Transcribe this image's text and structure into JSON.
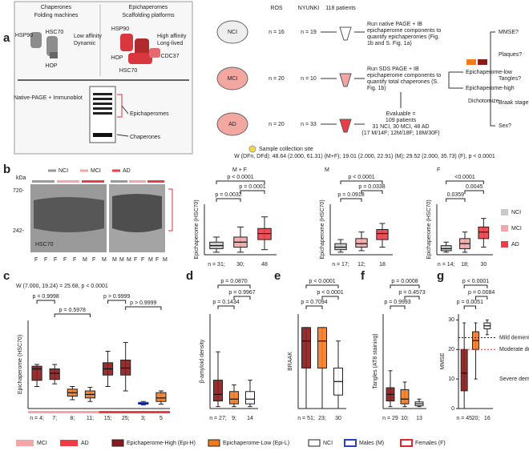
{
  "panel_a": {
    "label": "a",
    "chaperones": {
      "title": "Chaperones",
      "subtitle": "Folding machines",
      "proteins": [
        "HSP90",
        "HSC70",
        "HOP"
      ],
      "traits": [
        "Low affinity",
        "Dynamic"
      ]
    },
    "epichaperomes": {
      "title": "Epichaperomes",
      "subtitle": "Scaffolding platforms",
      "proteins": [
        "HSP90",
        "HOP",
        "HSC70",
        "CDC37"
      ],
      "traits": [
        "High affinity",
        "Long-lived"
      ]
    },
    "method": "Native-PAGE + Immunoblot",
    "bands": [
      "Epichaperomes",
      "Chaperones"
    ],
    "cohorts": [
      "ROS",
      "NYUNKI",
      "118 patients"
    ],
    "groups": [
      {
        "name": "NCI",
        "ros": "n = 16",
        "nyu": "n = 19"
      },
      {
        "name": "MCI",
        "ros": "n = 20",
        "nyu": "n = 10"
      },
      {
        "name": "AD",
        "ros": "n = 20",
        "nyu": "n = 33"
      }
    ],
    "steps": [
      [
        "Run native PAGE + IB",
        "epichaperome components to",
        "quantify epichaperomes (Fig.",
        "1b and S. Fig. 1a)"
      ],
      [
        "Run SDS PAGE + IB",
        "epichaperome components to",
        "quantify total chaperones (S.",
        "Fig. 1b)"
      ]
    ],
    "evaluable": [
      "Evaluable =",
      "109 patients",
      "31 NCI, 30 MCI, 48 AD",
      "(17 M/14F; 12M/18F; 18M/30F)"
    ],
    "outcomes": [
      "Epichaperome-low",
      "Epichaperome-high"
    ],
    "dichotomize": "Dichotomize",
    "questions": [
      "MMSE?",
      "Plaques?",
      "Tangles?",
      "Braak stage?",
      "Sex?"
    ],
    "site": "Sample collection site"
  },
  "panel_b": {
    "label": "b",
    "stat": "W (DFn, DFd): 48.64 (2.000, 61.31) (M+F); 19.01 (2.000, 22.91) (M); 29.52 (2.000, 35.73) (F), p < 0.0001",
    "legend": [
      "NCI",
      "MCI",
      "AD"
    ],
    "blot": {
      "unit": "kDa",
      "markers": [
        "720-",
        "242-"
      ],
      "protein": "HSC70",
      "lanes": [
        [
          "F",
          "F",
          "F",
          "F",
          "F",
          "M",
          "F",
          "M"
        ],
        [
          "M",
          "M",
          "M",
          "F",
          "F",
          "M",
          "F",
          "M"
        ]
      ]
    }
  },
  "panel_labels": [
    "c",
    "d",
    "e",
    "f",
    "g"
  ],
  "c_stat": "W (7.000, 19.24) = 25.68, p < 0.0001",
  "g_annotations": [
    {
      "label": "Mild dementia",
      "value": 24
    },
    {
      "label": "Moderate dementia",
      "value": 20
    },
    {
      "label": "Severe dementia",
      "value": 10
    }
  ],
  "legend": [
    "MCI",
    "AD",
    "Epichaperome-High (Epi-H)",
    "Epichaperome-Low (Epi-L)",
    "NCI",
    "Males (M)",
    "Females (F)"
  ],
  "chart_data": [
    {
      "type": "box",
      "title": "M + F",
      "ylabel": "Epichaperome (HSC70)",
      "categories": [
        "n = 31;",
        "30;",
        "48"
      ],
      "colors": [
        "#c9c9c9",
        "#f4a6a6",
        "#ec3d47"
      ],
      "ylim": [
        0,
        100
      ],
      "boxes": [
        {
          "min": 5,
          "q1": 12,
          "median": 18,
          "q3": 25,
          "max": 35
        },
        {
          "min": 5,
          "q1": 15,
          "median": 25,
          "q3": 35,
          "max": 55
        },
        {
          "min": 10,
          "q1": 30,
          "median": 42,
          "q3": 52,
          "max": 75
        }
      ],
      "p_labels": [
        "p = 0.0032",
        "p = 0.0001",
        "p < 0.0001"
      ]
    },
    {
      "type": "box",
      "title": "M",
      "ylabel": "Epichaperome (HSC70)",
      "categories": [
        "n = 17;",
        "12;",
        "18"
      ],
      "colors": [
        "#c9c9c9",
        "#f4a6a6",
        "#ec3d47"
      ],
      "ylim": [
        0,
        100
      ],
      "boxes": [
        {
          "min": 5,
          "q1": 10,
          "median": 15,
          "q3": 22,
          "max": 30
        },
        {
          "min": 8,
          "q1": 15,
          "median": 22,
          "q3": 32,
          "max": 45
        },
        {
          "min": 15,
          "q1": 30,
          "median": 42,
          "q3": 50,
          "max": 62
        }
      ],
      "p_labels": [
        "p = 0.0918",
        "p = 0.0338",
        "p < 0.0001"
      ]
    },
    {
      "type": "box",
      "title": "F",
      "ylabel": "Epichaperome (HSC70)",
      "categories": [
        "n = 14;",
        "18;",
        "30"
      ],
      "colors": [
        "#c9c9c9",
        "#f4a6a6",
        "#ec3d47"
      ],
      "ylim": [
        0,
        100
      ],
      "boxes": [
        {
          "min": 5,
          "q1": 8,
          "median": 12,
          "q3": 18,
          "max": 25
        },
        {
          "min": 5,
          "q1": 12,
          "median": 22,
          "q3": 32,
          "max": 45
        },
        {
          "min": 15,
          "q1": 32,
          "median": 45,
          "q3": 55,
          "max": 72
        }
      ],
      "p_labels": [
        "0.0359",
        "0.0045",
        "<0.0001"
      ]
    },
    {
      "type": "box",
      "ylabel": "Epichaperome (HSC70)",
      "categories": [
        "n = 4;",
        "7;",
        "8;",
        "11;",
        "15;",
        "25;",
        "3;",
        "5"
      ],
      "colors": [
        "#8b1a1a",
        "#8b1a1a",
        "#f47a20",
        "#f47a20",
        "#8b1a1a",
        "#8b1a1a",
        "#ffffff",
        "#f47a20"
      ],
      "ylim": [
        0,
        100
      ],
      "boxes": [
        {
          "min": 25,
          "q1": 32,
          "median": 45,
          "q3": 48,
          "max": 50
        },
        {
          "min": 28,
          "q1": 33,
          "median": 40,
          "q3": 45,
          "max": 50
        },
        {
          "min": 10,
          "q1": 14,
          "median": 18,
          "q3": 22,
          "max": 25
        },
        {
          "min": 8,
          "q1": 12,
          "median": 16,
          "q3": 20,
          "max": 24
        },
        {
          "min": 25,
          "q1": 38,
          "median": 45,
          "q3": 52,
          "max": 65
        },
        {
          "min": 20,
          "q1": 38,
          "median": 46,
          "q3": 55,
          "max": 75
        },
        {
          "min": 4,
          "q1": 5,
          "median": 6,
          "q3": 7,
          "max": 8
        },
        {
          "min": 5,
          "q1": 8,
          "median": 12,
          "q3": 18,
          "max": 20
        }
      ],
      "p_labels": [
        "p = 0.9998",
        "p = 0.5978",
        "p > 0.9999",
        "p > 0.9999"
      ]
    },
    {
      "type": "box",
      "ylabel": "β-amyloid density",
      "categories": [
        "n = 27;",
        "9;",
        "14"
      ],
      "colors": [
        "#8b1a1a",
        "#f47a20",
        "#ffffff"
      ],
      "ylim": [
        0,
        100
      ],
      "boxes": [
        {
          "min": 2,
          "q1": 8,
          "median": 15,
          "q3": 30,
          "max": 60
        },
        {
          "min": 2,
          "q1": 5,
          "median": 10,
          "q3": 18,
          "max": 25
        },
        {
          "min": 2,
          "q1": 5,
          "median": 10,
          "q3": 18,
          "max": 30
        }
      ],
      "p_labels": [
        "p = 0.1434",
        "p = 0.9967",
        "p = 0.0870"
      ]
    },
    {
      "type": "box",
      "ylabel": "BRAAK",
      "categories": [
        "n = 51;",
        "23;",
        "30"
      ],
      "colors": [
        "#8b1a1a",
        "#f47a20",
        "#ffffff"
      ],
      "ylim": [
        0,
        7
      ],
      "boxes": [
        {
          "min": 0,
          "q1": 3,
          "median": 5,
          "q3": 6,
          "max": 6
        },
        {
          "min": 0,
          "q1": 3,
          "median": 5,
          "q3": 6,
          "max": 6
        },
        {
          "min": 0,
          "q1": 1,
          "median": 2,
          "q3": 3,
          "max": 5
        }
      ],
      "p_labels": [
        "p = 0.7094",
        "p < 0.0001",
        "p < 0.0001"
      ]
    },
    {
      "type": "box",
      "ylabel": "Tangles (AT8 staining)",
      "categories": [
        "n = 29",
        "10;",
        "13"
      ],
      "colors": [
        "#8b1a1a",
        "#f47a20",
        "#ffffff"
      ],
      "ylim": [
        0,
        100
      ],
      "boxes": [
        {
          "min": 2,
          "q1": 8,
          "median": 15,
          "q3": 22,
          "max": 40
        },
        {
          "min": 2,
          "q1": 5,
          "median": 10,
          "q3": 20,
          "max": 28
        },
        {
          "min": 2,
          "q1": 3,
          "median": 5,
          "q3": 7,
          "max": 10
        }
      ],
      "p_labels": [
        "p = 0.9993",
        "p = 0.4573",
        "p = 0.0008"
      ]
    },
    {
      "type": "box",
      "ylabel": "MMSE",
      "categories": [
        "n = 45",
        "20;",
        "16"
      ],
      "colors": [
        "#8b1a1a",
        "#f47a20",
        "#ffffff"
      ],
      "ylim": [
        0,
        32
      ],
      "yticks": [
        0,
        10,
        20,
        30
      ],
      "boxes": [
        {
          "min": 0,
          "q1": 6,
          "median": 12,
          "q3": 20,
          "max": 29
        },
        {
          "min": 10,
          "q1": 20,
          "median": 23,
          "q3": 26,
          "max": 29
        },
        {
          "min": 25,
          "q1": 27,
          "median": 28,
          "q3": 29,
          "max": 30
        }
      ],
      "p_labels": [
        "p = 0.0051",
        "p = 0.0084",
        "p < 0.0001"
      ]
    }
  ]
}
